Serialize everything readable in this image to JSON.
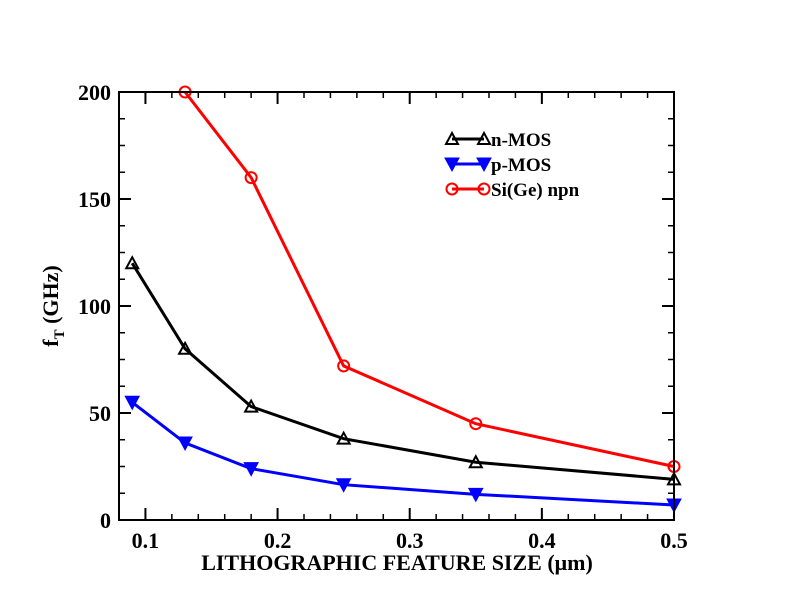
{
  "chart_data": {
    "type": "line",
    "title": "",
    "xlabel": "LITHOGRAPHIC FEATURE SIZE (μm)",
    "ylabel_main": "f",
    "ylabel_sub": "T",
    "ylabel_unit": " (GHz)",
    "xlim": [
      0.08,
      0.5
    ],
    "ylim": [
      0,
      200
    ],
    "xticks": [
      0.1,
      0.2,
      0.3,
      0.4,
      0.5
    ],
    "xtick_labels": [
      "0.1",
      "0.2",
      "0.3",
      "0.4",
      "0.5"
    ],
    "yticks": [
      0,
      50,
      100,
      150,
      200
    ],
    "ytick_labels": [
      "0",
      "50",
      "100",
      "150",
      "200"
    ],
    "grid": false,
    "legend_position": "top-right",
    "series": [
      {
        "name": "n-MOS",
        "color": "#000000",
        "marker": "triangle-up-open",
        "x": [
          0.09,
          0.13,
          0.18,
          0.25,
          0.35,
          0.5
        ],
        "y": [
          120,
          80,
          53,
          38,
          27,
          19
        ]
      },
      {
        "name": "p-MOS",
        "color": "#0000ff",
        "marker": "triangle-down-filled",
        "x": [
          0.09,
          0.13,
          0.18,
          0.25,
          0.35,
          0.5
        ],
        "y": [
          55,
          36,
          24,
          16.5,
          12,
          7
        ]
      },
      {
        "name": "Si(Ge) npn",
        "color": "#ff0000",
        "marker": "circle-open",
        "x": [
          0.13,
          0.18,
          0.25,
          0.35,
          0.5
        ],
        "y": [
          200,
          160,
          72,
          45,
          25
        ]
      }
    ]
  }
}
